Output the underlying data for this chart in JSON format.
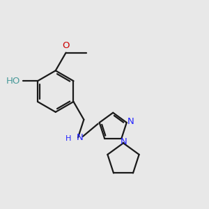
{
  "bg_color": "#e8e8e8",
  "bond_color": "#1a1a1a",
  "N_color": "#2222ff",
  "O_color": "#cc0000",
  "OH_color": "#4a9a9a",
  "lw": 1.6,
  "fs": 9.5,
  "xlim": [
    0.0,
    5.5
  ],
  "ylim": [
    0.5,
    5.5
  ]
}
